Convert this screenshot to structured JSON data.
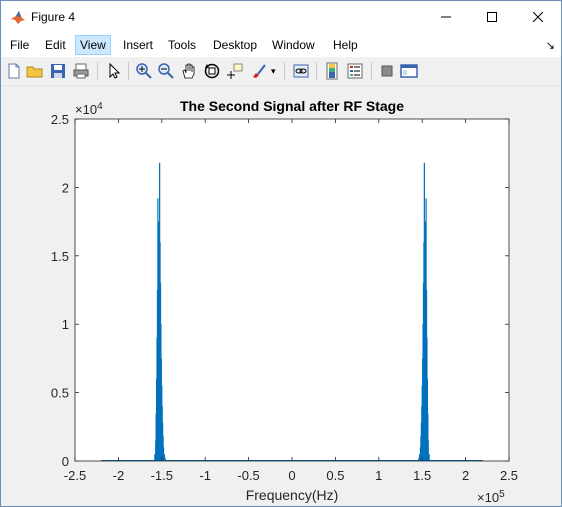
{
  "window": {
    "title": "Figure 4"
  },
  "menubar": {
    "items": [
      "File",
      "Edit",
      "View",
      "Insert",
      "Tools",
      "Desktop",
      "Window",
      "Help"
    ],
    "active": "View"
  },
  "toolbar": {
    "icons": [
      "new-figure-icon",
      "open-file-icon",
      "save-icon",
      "print-icon",
      "pointer-icon",
      "zoom-in-icon",
      "zoom-out-icon",
      "pan-icon",
      "rotate-3d-icon",
      "data-cursor-icon",
      "brush-icon",
      "link-plot-icon",
      "colorbar-icon",
      "legend-icon",
      "hide-plot-tools-icon",
      "show-plot-tools-icon"
    ]
  },
  "chart_data": {
    "type": "line",
    "title": "The Second Signal after RF Stage",
    "xlabel": "Frequency(Hz)",
    "ylabel": "",
    "x_exponent": "×10",
    "x_exponent_power": "5",
    "y_exponent": "×10",
    "y_exponent_power": "4",
    "xlim": [
      -2.5,
      2.5
    ],
    "ylim": [
      0,
      2.5
    ],
    "xticks": [
      -2.5,
      -2,
      -1.5,
      -1,
      -0.5,
      0,
      0.5,
      1,
      1.5,
      2,
      2.5
    ],
    "xtick_labels": [
      "-2.5",
      "-2",
      "-1.5",
      "-1",
      "-0.5",
      "0",
      "0.5",
      "1",
      "1.5",
      "2",
      "2.5"
    ],
    "yticks": [
      0,
      0.5,
      1,
      1.5,
      2,
      2.5
    ],
    "ytick_labels": [
      "0",
      "0.5",
      "1",
      "1.5",
      "2",
      "2.5"
    ],
    "grid": false,
    "color": "#0072bd",
    "x_span": [
      -2.2,
      2.2
    ],
    "series": [
      {
        "x": [
          -1.58,
          -1.57,
          -1.565,
          -1.56,
          -1.555,
          -1.55,
          -1.548,
          -1.545,
          -1.54,
          -1.535,
          -1.53,
          -1.525,
          -1.52,
          -1.515,
          -1.51,
          -1.505,
          -1.5,
          -1.495,
          -1.49,
          -1.485,
          -1.48,
          -1.47,
          -1.46,
          1.46,
          1.47,
          1.48,
          1.485,
          1.49,
          1.495,
          1.5,
          1.505,
          1.51,
          1.515,
          1.52,
          1.525,
          1.53,
          1.535,
          1.54,
          1.545,
          1.548,
          1.55,
          1.555,
          1.56,
          1.565,
          1.57,
          1.58
        ],
        "y": [
          0.05,
          0.15,
          0.35,
          0.6,
          0.9,
          1.25,
          1.05,
          1.92,
          1.5,
          1.75,
          1.2,
          2.18,
          1.6,
          1.3,
          1.0,
          0.75,
          0.55,
          0.4,
          0.28,
          0.18,
          0.1,
          0.05,
          0.02,
          0.02,
          0.05,
          0.1,
          0.18,
          0.28,
          0.4,
          0.55,
          0.75,
          1.0,
          1.3,
          1.6,
          2.18,
          1.2,
          1.75,
          1.5,
          1.92,
          1.05,
          1.25,
          0.9,
          0.6,
          0.35,
          0.15,
          0.05
        ]
      }
    ]
  }
}
